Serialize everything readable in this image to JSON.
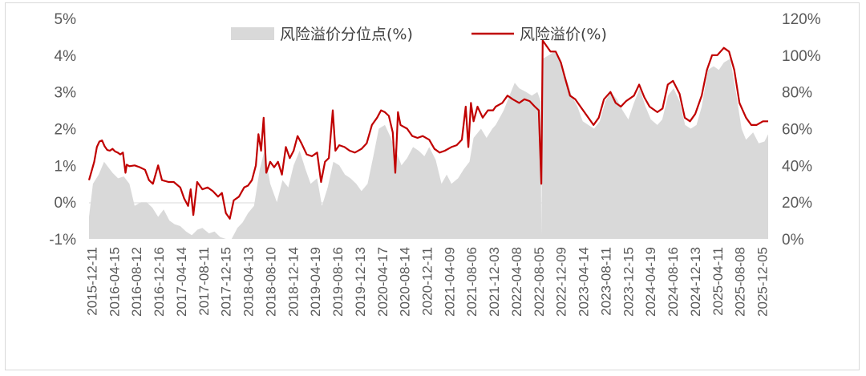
{
  "chart_data": {
    "type": "line+area",
    "legend_position": "top-center",
    "grid": false,
    "series": [
      {
        "name": "风险溢价分位点(%)",
        "kind": "area",
        "axis": "right",
        "color": "#d9d9d9",
        "points": [
          [
            "2015-12-11",
            12
          ],
          [
            "2016-01-01",
            30
          ],
          [
            "2016-02-01",
            35
          ],
          [
            "2016-03-01",
            42
          ],
          [
            "2016-04-15",
            36
          ],
          [
            "2016-05-15",
            33
          ],
          [
            "2016-06-15",
            34
          ],
          [
            "2016-07-15",
            30
          ],
          [
            "2016-08-12",
            18
          ],
          [
            "2016-09-15",
            20
          ],
          [
            "2016-10-15",
            20
          ],
          [
            "2016-11-15",
            17
          ],
          [
            "2016-12-16",
            12
          ],
          [
            "2017-01-15",
            16
          ],
          [
            "2017-02-15",
            10
          ],
          [
            "2017-03-15",
            8
          ],
          [
            "2017-04-14",
            7
          ],
          [
            "2017-05-15",
            4
          ],
          [
            "2017-06-15",
            2
          ],
          [
            "2017-07-15",
            5
          ],
          [
            "2017-08-11",
            6
          ],
          [
            "2017-09-15",
            3
          ],
          [
            "2017-10-15",
            4
          ],
          [
            "2017-11-15",
            1
          ],
          [
            "2017-12-15",
            0
          ],
          [
            "2018-01-15",
            0
          ],
          [
            "2018-02-15",
            6
          ],
          [
            "2018-03-15",
            9
          ],
          [
            "2018-04-13",
            14
          ],
          [
            "2018-05-15",
            18
          ],
          [
            "2018-06-15",
            38
          ],
          [
            "2018-07-10",
            48
          ],
          [
            "2018-08-10",
            30
          ],
          [
            "2018-09-15",
            20
          ],
          [
            "2018-10-15",
            32
          ],
          [
            "2018-11-15",
            28
          ],
          [
            "2018-12-14",
            40
          ],
          [
            "2019-01-15",
            48
          ],
          [
            "2019-02-15",
            38
          ],
          [
            "2019-03-15",
            30
          ],
          [
            "2019-04-19",
            33
          ],
          [
            "2019-05-15",
            18
          ],
          [
            "2019-06-15",
            28
          ],
          [
            "2019-07-15",
            42
          ],
          [
            "2019-08-16",
            40
          ],
          [
            "2019-09-15",
            35
          ],
          [
            "2019-10-15",
            33
          ],
          [
            "2019-11-15",
            30
          ],
          [
            "2019-12-13",
            26
          ],
          [
            "2020-01-15",
            30
          ],
          [
            "2020-02-15",
            45
          ],
          [
            "2020-03-15",
            60
          ],
          [
            "2020-04-17",
            62
          ],
          [
            "2020-05-15",
            56
          ],
          [
            "2020-06-15",
            48
          ],
          [
            "2020-07-15",
            40
          ],
          [
            "2020-08-14",
            44
          ],
          [
            "2020-09-15",
            50
          ],
          [
            "2020-10-15",
            48
          ],
          [
            "2020-11-15",
            45
          ],
          [
            "2020-12-11",
            50
          ],
          [
            "2021-01-15",
            43
          ],
          [
            "2021-02-15",
            30
          ],
          [
            "2021-03-15",
            35
          ],
          [
            "2021-04-09",
            30
          ],
          [
            "2021-05-15",
            33
          ],
          [
            "2021-06-15",
            38
          ],
          [
            "2021-07-15",
            42
          ],
          [
            "2021-08-06",
            55
          ],
          [
            "2021-09-15",
            60
          ],
          [
            "2021-10-15",
            55
          ],
          [
            "2021-11-15",
            60
          ],
          [
            "2021-12-03",
            62
          ],
          [
            "2022-01-15",
            70
          ],
          [
            "2022-02-15",
            78
          ],
          [
            "2022-03-15",
            85
          ],
          [
            "2022-04-08",
            82
          ],
          [
            "2022-05-15",
            80
          ],
          [
            "2022-06-15",
            78
          ],
          [
            "2022-07-15",
            80
          ],
          [
            "2022-08-01",
            75
          ],
          [
            "2022-08-05",
            2
          ],
          [
            "2022-08-12",
            98
          ],
          [
            "2022-09-15",
            100
          ],
          [
            "2022-10-15",
            102
          ],
          [
            "2022-11-15",
            96
          ],
          [
            "2022-12-09",
            90
          ],
          [
            "2023-01-15",
            78
          ],
          [
            "2023-02-15",
            72
          ],
          [
            "2023-03-15",
            64
          ],
          [
            "2023-04-14",
            62
          ],
          [
            "2023-05-15",
            60
          ],
          [
            "2023-06-15",
            64
          ],
          [
            "2023-07-15",
            75
          ],
          [
            "2023-08-11",
            80
          ],
          [
            "2023-09-15",
            76
          ],
          [
            "2023-10-15",
            70
          ],
          [
            "2023-11-15",
            65
          ],
          [
            "2023-12-15",
            74
          ],
          [
            "2024-01-15",
            82
          ],
          [
            "2024-02-15",
            72
          ],
          [
            "2024-03-15",
            65
          ],
          [
            "2024-04-19",
            62
          ],
          [
            "2024-05-15",
            65
          ],
          [
            "2024-06-15",
            78
          ],
          [
            "2024-07-15",
            82
          ],
          [
            "2024-08-16",
            75
          ],
          [
            "2024-09-15",
            62
          ],
          [
            "2024-10-15",
            60
          ],
          [
            "2024-11-15",
            62
          ],
          [
            "2024-12-13",
            72
          ],
          [
            "2025-01-15",
            92
          ],
          [
            "2025-02-15",
            94
          ],
          [
            "2025-03-15",
            92
          ],
          [
            "2025-04-11",
            96
          ],
          [
            "2025-05-15",
            98
          ],
          [
            "2025-06-15",
            80
          ],
          [
            "2025-07-15",
            60
          ],
          [
            "2025-08-08",
            54
          ],
          [
            "2025-09-15",
            58
          ],
          [
            "2025-10-15",
            52
          ],
          [
            "2025-11-15",
            53
          ],
          [
            "2025-12-05",
            57
          ]
        ]
      },
      {
        "name": "风险溢价(%)",
        "kind": "line",
        "axis": "left",
        "color": "#c00000",
        "points": [
          [
            "2015-12-11",
            0.6
          ],
          [
            "2015-12-25",
            0.85
          ],
          [
            "2016-01-08",
            1.1
          ],
          [
            "2016-01-22",
            1.5
          ],
          [
            "2016-02-05",
            1.65
          ],
          [
            "2016-02-19",
            1.68
          ],
          [
            "2016-03-04",
            1.52
          ],
          [
            "2016-03-18",
            1.42
          ],
          [
            "2016-04-01",
            1.4
          ],
          [
            "2016-04-15",
            1.45
          ],
          [
            "2016-04-29",
            1.38
          ],
          [
            "2016-05-13",
            1.35
          ],
          [
            "2016-05-27",
            1.3
          ],
          [
            "2016-06-10",
            1.35
          ],
          [
            "2016-06-24",
            0.8
          ],
          [
            "2016-07-01",
            1.02
          ],
          [
            "2016-07-15",
            0.98
          ],
          [
            "2016-08-12",
            1.0
          ],
          [
            "2016-09-09",
            0.95
          ],
          [
            "2016-10-07",
            0.88
          ],
          [
            "2016-10-28",
            0.6
          ],
          [
            "2016-11-18",
            0.5
          ],
          [
            "2016-12-16",
            1.0
          ],
          [
            "2017-01-06",
            0.6
          ],
          [
            "2017-02-10",
            0.55
          ],
          [
            "2017-03-10",
            0.55
          ],
          [
            "2017-04-14",
            0.4
          ],
          [
            "2017-05-05",
            0.1
          ],
          [
            "2017-05-26",
            -0.1
          ],
          [
            "2017-06-09",
            0.35
          ],
          [
            "2017-06-23",
            -0.35
          ],
          [
            "2017-07-14",
            0.55
          ],
          [
            "2017-08-11",
            0.35
          ],
          [
            "2017-09-08",
            0.4
          ],
          [
            "2017-10-06",
            0.3
          ],
          [
            "2017-11-03",
            0.15
          ],
          [
            "2017-11-24",
            0.25
          ],
          [
            "2017-12-15",
            -0.3
          ],
          [
            "2018-01-05",
            -0.45
          ],
          [
            "2018-01-26",
            0.05
          ],
          [
            "2018-02-23",
            0.15
          ],
          [
            "2018-03-23",
            0.4
          ],
          [
            "2018-04-13",
            0.45
          ],
          [
            "2018-05-04",
            0.6
          ],
          [
            "2018-05-25",
            1.0
          ],
          [
            "2018-06-08",
            1.85
          ],
          [
            "2018-06-22",
            1.4
          ],
          [
            "2018-07-06",
            2.3
          ],
          [
            "2018-07-20",
            0.8
          ],
          [
            "2018-08-10",
            1.1
          ],
          [
            "2018-08-31",
            0.95
          ],
          [
            "2018-09-21",
            1.1
          ],
          [
            "2018-10-12",
            0.75
          ],
          [
            "2018-11-02",
            1.5
          ],
          [
            "2018-11-23",
            1.2
          ],
          [
            "2018-12-14",
            1.4
          ],
          [
            "2019-01-04",
            1.8
          ],
          [
            "2019-01-25",
            1.6
          ],
          [
            "2019-02-22",
            1.3
          ],
          [
            "2019-03-22",
            1.25
          ],
          [
            "2019-04-19",
            1.35
          ],
          [
            "2019-05-10",
            0.55
          ],
          [
            "2019-05-31",
            1.1
          ],
          [
            "2019-06-21",
            1.2
          ],
          [
            "2019-07-12",
            2.5
          ],
          [
            "2019-07-26",
            1.4
          ],
          [
            "2019-08-16",
            1.55
          ],
          [
            "2019-09-13",
            1.5
          ],
          [
            "2019-10-11",
            1.4
          ],
          [
            "2019-11-08",
            1.35
          ],
          [
            "2019-12-13",
            1.45
          ],
          [
            "2020-01-10",
            1.6
          ],
          [
            "2020-02-07",
            2.1
          ],
          [
            "2020-03-06",
            2.3
          ],
          [
            "2020-03-27",
            2.5
          ],
          [
            "2020-04-17",
            2.45
          ],
          [
            "2020-05-08",
            2.35
          ],
          [
            "2020-05-29",
            1.9
          ],
          [
            "2020-06-12",
            0.8
          ],
          [
            "2020-06-26",
            2.45
          ],
          [
            "2020-07-10",
            2.1
          ],
          [
            "2020-08-14",
            2.0
          ],
          [
            "2020-09-11",
            1.8
          ],
          [
            "2020-10-09",
            1.75
          ],
          [
            "2020-11-06",
            1.8
          ],
          [
            "2020-12-11",
            1.7
          ],
          [
            "2021-01-08",
            1.45
          ],
          [
            "2021-02-05",
            1.35
          ],
          [
            "2021-03-05",
            1.4
          ],
          [
            "2021-04-09",
            1.5
          ],
          [
            "2021-05-07",
            1.55
          ],
          [
            "2021-06-04",
            1.7
          ],
          [
            "2021-06-25",
            2.6
          ],
          [
            "2021-07-09",
            1.5
          ],
          [
            "2021-07-23",
            2.7
          ],
          [
            "2021-08-06",
            2.2
          ],
          [
            "2021-08-27",
            2.6
          ],
          [
            "2021-09-24",
            2.3
          ],
          [
            "2021-10-22",
            2.5
          ],
          [
            "2021-11-19",
            2.5
          ],
          [
            "2021-12-03",
            2.6
          ],
          [
            "2022-01-07",
            2.7
          ],
          [
            "2022-02-04",
            2.9
          ],
          [
            "2022-03-04",
            2.8
          ],
          [
            "2022-04-08",
            2.7
          ],
          [
            "2022-05-06",
            2.8
          ],
          [
            "2022-06-03",
            2.75
          ],
          [
            "2022-07-01",
            2.6
          ],
          [
            "2022-07-22",
            2.5
          ],
          [
            "2022-08-05",
            0.5
          ],
          [
            "2022-08-12",
            4.4
          ],
          [
            "2022-08-26",
            4.3
          ],
          [
            "2022-09-23",
            4.1
          ],
          [
            "2022-10-21",
            4.1
          ],
          [
            "2022-11-18",
            3.8
          ],
          [
            "2022-12-09",
            3.4
          ],
          [
            "2023-01-06",
            2.9
          ],
          [
            "2023-02-03",
            2.8
          ],
          [
            "2023-03-03",
            2.6
          ],
          [
            "2023-04-14",
            2.3
          ],
          [
            "2023-05-12",
            2.1
          ],
          [
            "2023-06-09",
            2.3
          ],
          [
            "2023-07-07",
            2.8
          ],
          [
            "2023-08-11",
            3.0
          ],
          [
            "2023-09-08",
            2.7
          ],
          [
            "2023-10-06",
            2.6
          ],
          [
            "2023-11-03",
            2.75
          ],
          [
            "2023-12-15",
            2.9
          ],
          [
            "2024-01-12",
            3.2
          ],
          [
            "2024-02-09",
            2.85
          ],
          [
            "2024-03-08",
            2.6
          ],
          [
            "2024-04-19",
            2.45
          ],
          [
            "2024-05-17",
            2.55
          ],
          [
            "2024-06-14",
            3.2
          ],
          [
            "2024-07-12",
            3.3
          ],
          [
            "2024-08-16",
            2.95
          ],
          [
            "2024-09-13",
            2.3
          ],
          [
            "2024-10-11",
            2.2
          ],
          [
            "2024-11-08",
            2.4
          ],
          [
            "2024-12-13",
            2.9
          ],
          [
            "2025-01-10",
            3.6
          ],
          [
            "2025-02-07",
            4.0
          ],
          [
            "2025-03-07",
            4.0
          ],
          [
            "2025-04-11",
            4.2
          ],
          [
            "2025-05-09",
            4.1
          ],
          [
            "2025-06-06",
            3.6
          ],
          [
            "2025-07-04",
            2.7
          ],
          [
            "2025-08-08",
            2.3
          ],
          [
            "2025-09-05",
            2.1
          ],
          [
            "2025-10-03",
            2.1
          ],
          [
            "2025-11-07",
            2.2
          ],
          [
            "2025-12-05",
            2.2
          ]
        ]
      }
    ],
    "left_axis": {
      "ylim": [
        -1,
        5
      ],
      "ticks": [
        "-1%",
        "0%",
        "1%",
        "2%",
        "3%",
        "4%",
        "5%"
      ]
    },
    "right_axis": {
      "ylim": [
        0,
        120
      ],
      "ticks": [
        "0%",
        "20%",
        "40%",
        "60%",
        "80%",
        "100%",
        "120%"
      ]
    },
    "x_axis": {
      "range": [
        "2015-12-11",
        "2025-12-05"
      ],
      "ticks": [
        "2015-12-11",
        "2016-04-15",
        "2016-08-12",
        "2016-12-16",
        "2017-04-14",
        "2017-08-11",
        "2017-12-15",
        "2018-04-13",
        "2018-08-10",
        "2018-12-14",
        "2019-04-19",
        "2019-08-16",
        "2019-12-13",
        "2020-04-17",
        "2020-08-14",
        "2020-12-11",
        "2021-04-09",
        "2021-08-06",
        "2021-12-03",
        "2022-04-08",
        "2022-08-05",
        "2022-12-09",
        "2023-04-14",
        "2023-08-11",
        "2023-12-15",
        "2024-04-19",
        "2024-08-16",
        "2024-12-13",
        "2025-04-11",
        "2025-08-08",
        "2025-12-05"
      ]
    }
  }
}
